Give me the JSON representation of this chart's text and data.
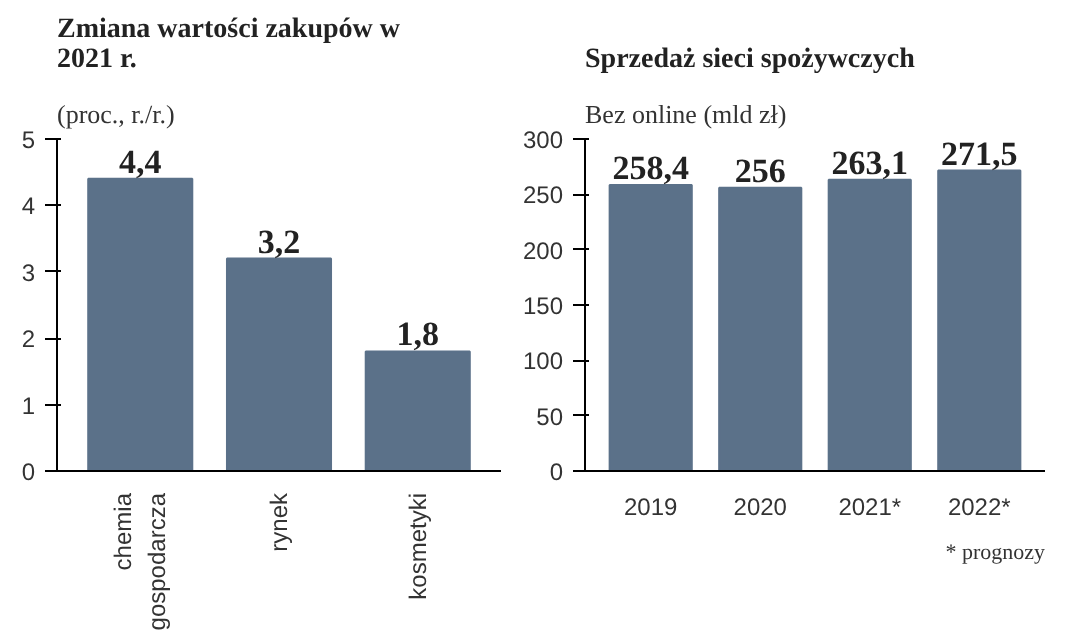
{
  "chart_data": [
    {
      "type": "bar",
      "title": "Zmiana wartości zakupów w 2021 r.",
      "subtitle": "(proc., r./r.)",
      "categories": [
        "chemia gospodarcza",
        "rynek",
        "kosmetyki"
      ],
      "values": [
        4.4,
        3.2,
        1.8
      ],
      "value_labels": [
        "4,4",
        "3,2",
        "1,8"
      ],
      "color": "#5b7189",
      "ylim": [
        0,
        5
      ],
      "yticks": [
        0,
        1,
        2,
        3,
        4,
        5
      ],
      "grid": false
    },
    {
      "type": "bar",
      "title": "Sprzedaż sieci spożywczych",
      "subtitle": "Bez online (mld zł)",
      "categories": [
        "2019",
        "2020",
        "2021*",
        "2022*"
      ],
      "values": [
        258.4,
        256,
        263.1,
        271.5
      ],
      "value_labels": [
        "258,4",
        "256",
        "263,1",
        "271,5"
      ],
      "color": "#5b7189",
      "ylim": [
        0,
        300
      ],
      "yticks": [
        0,
        50,
        100,
        150,
        200,
        250,
        300
      ],
      "grid": false,
      "annotations": [
        "* prognozy"
      ]
    }
  ]
}
